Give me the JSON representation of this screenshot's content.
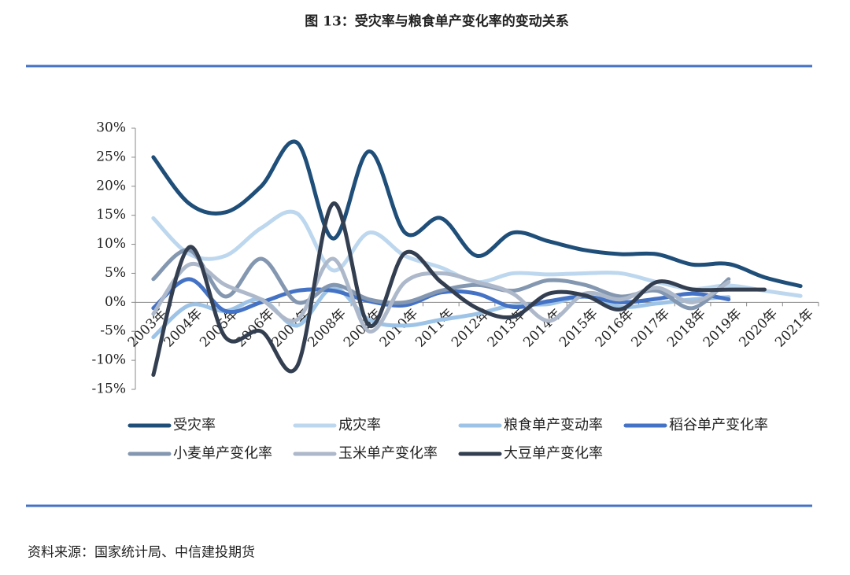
{
  "chart_data": {
    "type": "line",
    "title": "图 13：受灾率与粮食单产变化率的变动关系",
    "source": "资料来源：国家统计局、中信建投期货",
    "categories": [
      "2003年",
      "2004年",
      "2005年",
      "2006年",
      "2007年",
      "2008年",
      "2009年",
      "2010年",
      "2011年",
      "2012年",
      "2013年",
      "2014年",
      "2015年",
      "2016年",
      "2017年",
      "2018年",
      "2019年",
      "2020年",
      "2021年"
    ],
    "ylim": [
      -15,
      30
    ],
    "yticks": [
      {
        "value": 30,
        "label": "30%"
      },
      {
        "value": 25,
        "label": "25%"
      },
      {
        "value": 20,
        "label": "20%"
      },
      {
        "value": 15,
        "label": "15%"
      },
      {
        "value": 10,
        "label": "10%"
      },
      {
        "value": 5,
        "label": "5%"
      },
      {
        "value": 0,
        "label": "0%"
      },
      {
        "value": -5,
        "label": "-5%"
      },
      {
        "value": -10,
        "label": "-10%"
      },
      {
        "value": -15,
        "label": "-15%"
      }
    ],
    "legend": "bottom",
    "smooth": true,
    "series": [
      {
        "name": "受灾率",
        "color": "#1f4e79",
        "values": [
          25,
          17,
          15.5,
          20,
          27.5,
          11,
          26,
          12,
          14.5,
          8,
          12,
          10.5,
          9,
          8.3,
          8.3,
          6.5,
          6.6,
          4.3,
          2.8
        ]
      },
      {
        "name": "成灾率",
        "color": "#bdd7ee",
        "values": [
          14.5,
          8.3,
          8,
          12.8,
          15.3,
          5.5,
          12,
          8,
          6,
          3.5,
          5,
          4.8,
          5,
          5,
          3.5,
          2.3,
          2.9,
          2,
          1.1
        ]
      },
      {
        "name": "粮食单产变动率",
        "color": "#9dc3e6",
        "values": [
          -6,
          -0.5,
          -1.5,
          0.5,
          -4,
          2.5,
          -3,
          -4,
          -3,
          -2,
          -0.5,
          -0.3,
          1,
          -0.8,
          -0.2,
          0.5,
          0.9,
          null,
          null
        ]
      },
      {
        "name": "稻谷单产变化率",
        "color": "#4472c4",
        "values": [
          -1,
          4,
          -1.5,
          0,
          2,
          2,
          0.2,
          -0.5,
          1.7,
          1.5,
          -0.8,
          0.2,
          1,
          0,
          0.6,
          1.5,
          0.5,
          null,
          null
        ]
      },
      {
        "name": "小麦单产变化率",
        "color": "#8497b0",
        "values": [
          4,
          9,
          1,
          7.5,
          0,
          3,
          0.5,
          0,
          2,
          3,
          2,
          3.8,
          3,
          1,
          2,
          -1,
          4,
          null,
          null
        ]
      },
      {
        "name": "玉米单产变化率",
        "color": "#adb9ca",
        "values": [
          -2,
          6.5,
          3,
          0.5,
          -3,
          7.5,
          -5,
          3.5,
          5,
          3.5,
          1.5,
          -3.2,
          1.5,
          0.5,
          2.5,
          0,
          3.5,
          null,
          null
        ]
      },
      {
        "name": "大豆单产变化率",
        "color": "#333f50",
        "values": [
          -12.5,
          9.5,
          -6,
          -5,
          -11,
          17,
          -4,
          8.5,
          3.5,
          -1,
          -2.5,
          1.5,
          1.2,
          -1.2,
          3.5,
          2.2,
          2.2,
          2.2,
          null
        ]
      }
    ]
  }
}
